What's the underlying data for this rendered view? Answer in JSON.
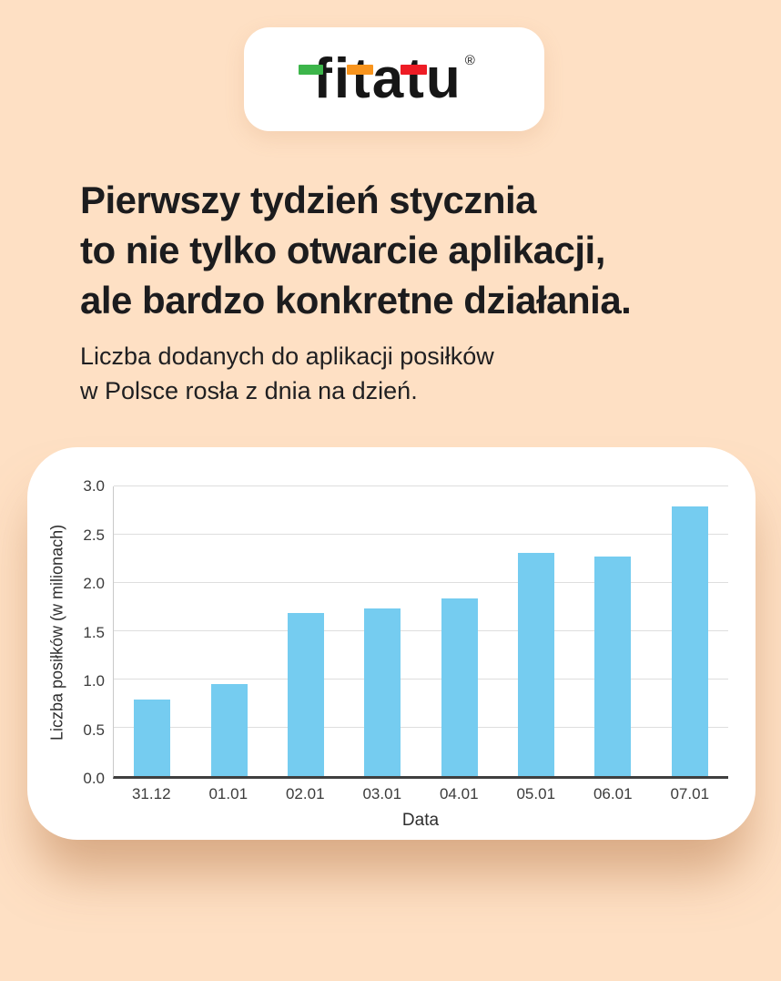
{
  "page": {
    "background": "#fee0c4"
  },
  "logo": {
    "text": "fitatu",
    "letters": [
      "f",
      "i",
      "t",
      "a",
      "t",
      "u"
    ],
    "registered": "®",
    "accent_green": "#3cb54a",
    "accent_orange": "#f8941d",
    "accent_red": "#ee1c25",
    "text_color": "#161616"
  },
  "headline": {
    "lines": [
      "Pierwszy tydzień stycznia",
      "to nie tylko otwarcie aplikacji,",
      "ale bardzo konkretne działania."
    ]
  },
  "subtitle": {
    "lines": [
      "Liczba dodanych do aplikacji posiłków",
      "w Polsce rosła z dnia na dzień."
    ]
  },
  "chart_data": {
    "type": "bar",
    "categories": [
      "31.12",
      "01.01",
      "02.01",
      "03.01",
      "04.01",
      "05.01",
      "06.01",
      "07.01"
    ],
    "values": [
      0.79,
      0.95,
      1.69,
      1.74,
      1.84,
      2.31,
      2.27,
      2.79
    ],
    "title": "",
    "xlabel": "Data",
    "ylabel": "Liczba posiłków (w milionach)",
    "ylim": [
      0,
      3.0
    ],
    "ytick_labels": [
      "0.0",
      "0.5",
      "1.0",
      "1.5",
      "2.0",
      "2.5",
      "3.0"
    ],
    "bar_color": "#75ccf0",
    "grid": true,
    "gridline_color": "#dedede",
    "legend": false
  }
}
